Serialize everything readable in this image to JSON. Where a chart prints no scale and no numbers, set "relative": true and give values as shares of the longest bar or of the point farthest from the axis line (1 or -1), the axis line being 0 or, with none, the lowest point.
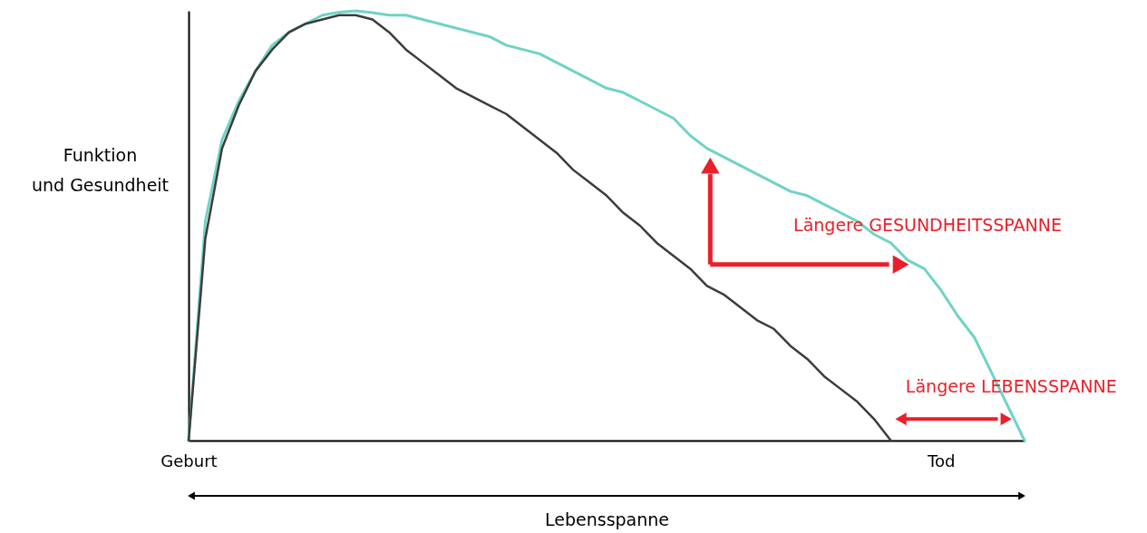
{
  "chart_data": {
    "type": "line",
    "relative": true,
    "xlabel": "Lebensspanne",
    "ylabel": "Funktion\nund Gesundheit",
    "categories": [
      "Geburt",
      null,
      null,
      null,
      null,
      null,
      null,
      null,
      null,
      null,
      null,
      null,
      null,
      null,
      null,
      null,
      null,
      null,
      null,
      null,
      null,
      null,
      null,
      null,
      null,
      null,
      null,
      null,
      null,
      null,
      null,
      null,
      null,
      null,
      null,
      null,
      null,
      null,
      null,
      null,
      null,
      null,
      null,
      null,
      null,
      "Tod",
      null,
      null,
      null,
      null,
      null
    ],
    "series": [
      {
        "color": "#6fd3c6",
        "values": [
          0,
          0.51,
          0.7,
          0.79,
          0.86,
          0.92,
          0.95,
          0.97,
          0.99,
          0.997,
          1,
          0.996,
          0.99,
          0.99,
          0.98,
          0.97,
          0.96,
          0.95,
          0.94,
          0.92,
          0.91,
          0.9,
          0.88,
          0.86,
          0.84,
          0.82,
          0.81,
          0.79,
          0.77,
          0.75,
          0.71,
          0.68,
          0.66,
          0.64,
          0.62,
          0.6,
          0.58,
          0.57,
          0.55,
          0.53,
          0.51,
          0.48,
          0.46,
          0.42,
          0.4,
          0.35,
          0.29,
          0.24,
          0.16,
          0.08,
          0
        ]
      },
      {
        "color": "#3c3c3c",
        "values": [
          0,
          0.47,
          0.68,
          0.78,
          0.86,
          0.91,
          0.95,
          0.97,
          0.98,
          0.99,
          0.99,
          0.98,
          0.95,
          0.91,
          0.88,
          0.85,
          0.82,
          0.8,
          0.78,
          0.76,
          0.73,
          0.7,
          0.67,
          0.63,
          0.6,
          0.57,
          0.53,
          0.5,
          0.46,
          0.43,
          0.4,
          0.36,
          0.34,
          0.31,
          0.28,
          0.26,
          0.22,
          0.19,
          0.15,
          0.12,
          0.09,
          0.05,
          0,
          null,
          null,
          null,
          null,
          null,
          null,
          null,
          null
        ]
      }
    ],
    "annotations": [
      "Längere GESUNDHEITSSPANNE",
      "Längere LEBENSSPANNE"
    ],
    "grid": false
  }
}
